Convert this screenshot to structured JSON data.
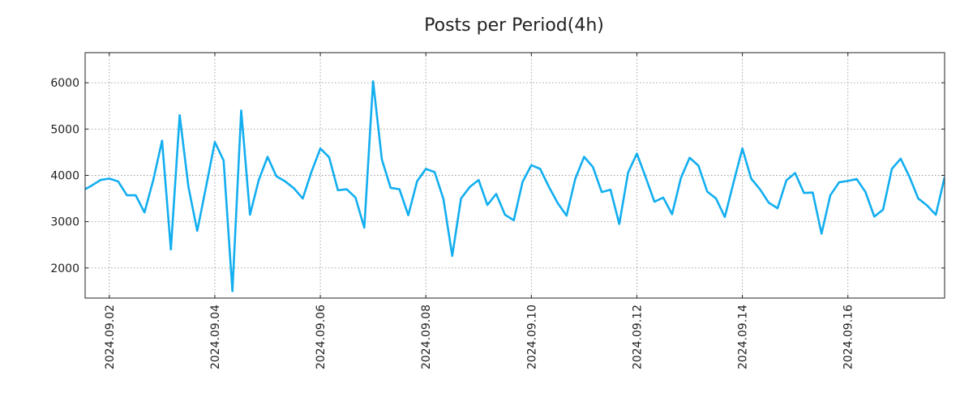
{
  "chart_data": {
    "type": "line",
    "title": "Posts per Period(4h)",
    "xlabel": "",
    "ylabel": "",
    "ylim": [
      1350,
      6650
    ],
    "xlim": [
      -0.75,
      97
    ],
    "grid": true,
    "y_ticks": [
      2000,
      3000,
      4000,
      5000,
      6000
    ],
    "y_tick_labels": [
      "2000",
      "3000",
      "4000",
      "5000",
      "6000"
    ],
    "x_ticks": [
      2,
      14,
      26,
      38,
      50,
      62,
      74,
      86
    ],
    "x_tick_labels": [
      "2024.09.02",
      "2024.09.04",
      "2024.09.06",
      "2024.09.08",
      "2024.09.10",
      "2024.09.12",
      "2024.09.14",
      "2024.09.16"
    ],
    "series": [
      {
        "name": "Posts",
        "color": "#12aef0",
        "x": [
          -0.75,
          0,
          1,
          2,
          3,
          4,
          5,
          6,
          7,
          8,
          9,
          10,
          11,
          12,
          13,
          14,
          15,
          16,
          17,
          18,
          19,
          20,
          21,
          22,
          23,
          24,
          25,
          26,
          27,
          28,
          29,
          30,
          31,
          32,
          33,
          34,
          35,
          36,
          37,
          38,
          39,
          40,
          41,
          42,
          43,
          44,
          45,
          46,
          47,
          48,
          49,
          50,
          51,
          52,
          53,
          54,
          55,
          56,
          57,
          58,
          59,
          60,
          61,
          62,
          63,
          64,
          65,
          66,
          67,
          68,
          69,
          70,
          71,
          72,
          73,
          74,
          75,
          76,
          77,
          78,
          79,
          80,
          81,
          82,
          83,
          84,
          85,
          86,
          87,
          88,
          89,
          90,
          91,
          92,
          93,
          94,
          95,
          96,
          97
        ],
        "values": [
          3700,
          3780,
          3900,
          3930,
          3870,
          3570,
          3570,
          3200,
          3900,
          4750,
          2400,
          5300,
          3750,
          2800,
          3750,
          4720,
          4320,
          1500,
          5400,
          3150,
          3900,
          4400,
          3980,
          3870,
          3720,
          3500,
          4080,
          4580,
          4390,
          3680,
          3700,
          3520,
          2870,
          6030,
          4340,
          3730,
          3700,
          3140,
          3870,
          4140,
          4070,
          3490,
          2260,
          3500,
          3750,
          3900,
          3360,
          3600,
          3150,
          3030,
          3860,
          4220,
          4140,
          3750,
          3400,
          3130,
          3930,
          4400,
          4180,
          3640,
          3690,
          2950,
          4060,
          4470,
          3960,
          3430,
          3520,
          3160,
          3940,
          4380,
          4210,
          3650,
          3500,
          3100,
          3850,
          4580,
          3930,
          3700,
          3410,
          3290,
          3890,
          4050,
          3620,
          3630,
          2740,
          3570,
          3850,
          3880,
          3920,
          3640,
          3110,
          3260,
          4140,
          4360,
          3970,
          3500,
          3350,
          3150,
          3960
        ]
      }
    ]
  }
}
